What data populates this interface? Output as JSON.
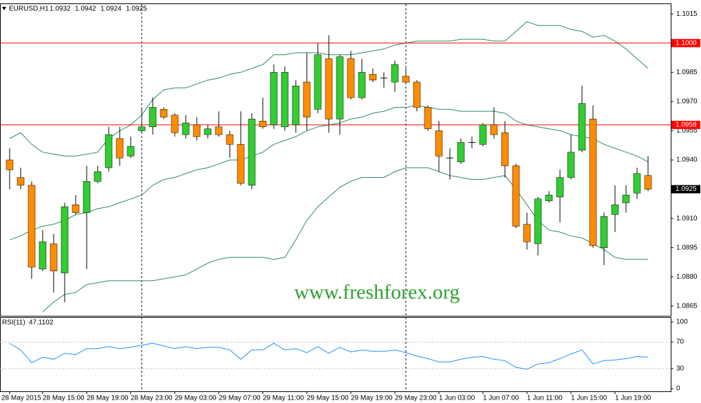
{
  "chart_data": [
    {
      "type": "candlestick",
      "title": "EURUSD,H1",
      "header_values": [
        1.0932,
        1.0942,
        1.0924,
        1.0925
      ],
      "watermark": "www.freshforex.org",
      "categories": [
        "28 May 2015",
        null,
        null,
        "28 May 15:00",
        null,
        null,
        null,
        "28 May 19:00",
        null,
        null,
        null,
        "28 May 23:00",
        null,
        null,
        null,
        "29 May 03:00",
        null,
        null,
        null,
        "29 May 07:00",
        null,
        null,
        null,
        "29 May 11:00",
        null,
        null,
        null,
        "29 May 15:00",
        null,
        null,
        null,
        "29 May 19:00",
        null,
        null,
        null,
        "29 May 23:00",
        null,
        null,
        null,
        "1 Jun 03:00",
        null,
        null,
        null,
        "1 Jun 07:00",
        null,
        null,
        null,
        "1 Jun 11:00",
        null,
        null,
        null,
        "1 Jun 15:00",
        null,
        null,
        null,
        "1 Jun 19:00",
        null,
        null,
        null
      ],
      "open": [
        1.094,
        1.0931,
        1.0927,
        1.0884,
        1.0897,
        1.0882,
        1.0917,
        1.0913,
        1.0929,
        1.0936,
        1.0951,
        1.0942,
        1.0955,
        1.0957,
        1.0966,
        1.0963,
        1.0953,
        1.0958,
        1.0953,
        1.0957,
        1.0953,
        1.0948,
        1.0927,
        1.096,
        1.0958,
        1.0957,
        1.0958,
        1.098,
        1.0966,
        1.0992,
        1.0961,
        1.0992,
        1.0972,
        1.0984,
        1.0982,
        1.098,
        1.0983,
        1.098,
        1.0967,
        1.0955,
        1.0941,
        1.0939,
        1.0949,
        1.0948,
        1.0958,
        1.0954,
        1.0937,
        1.0907,
        1.0897,
        1.0919,
        1.0921,
        1.0931,
        1.0945,
        1.0961,
        1.0895,
        1.0912,
        1.0918,
        1.0923,
        1.0932
      ],
      "high": [
        1.0946,
        1.0936,
        1.0929,
        1.0904,
        1.0902,
        1.0918,
        1.0922,
        1.0937,
        1.0937,
        1.0957,
        1.0957,
        1.0952,
        1.0967,
        1.0972,
        1.0967,
        1.0964,
        1.0963,
        1.0962,
        1.0958,
        1.0965,
        1.0955,
        1.0965,
        1.0964,
        1.0972,
        1.0989,
        1.0988,
        1.0981,
        1.0995,
        1.1,
        1.1004,
        1.0994,
        1.0996,
        1.0992,
        1.0987,
        1.0985,
        1.0991,
        1.0987,
        1.0981,
        1.0968,
        1.096,
        1.0946,
        1.0951,
        1.0952,
        1.0959,
        1.0967,
        1.096,
        1.0938,
        1.0913,
        1.0921,
        1.0924,
        1.0935,
        1.0953,
        1.0978,
        1.0968,
        1.0913,
        1.0927,
        1.0927,
        1.0936,
        1.0942
      ],
      "low": [
        1.0925,
        1.0925,
        1.0879,
        1.0883,
        1.0872,
        1.0867,
        1.0912,
        1.0884,
        1.0928,
        1.0934,
        1.0937,
        1.0941,
        1.0954,
        1.0953,
        1.0961,
        1.0952,
        1.0951,
        1.095,
        1.0951,
        1.0952,
        1.0941,
        1.0927,
        1.0925,
        1.0956,
        1.0956,
        1.0955,
        1.0954,
        1.0955,
        1.0964,
        1.0954,
        1.0953,
        1.0971,
        1.0971,
        1.098,
        1.0977,
        1.0975,
        1.0979,
        1.0965,
        1.0955,
        1.0934,
        1.093,
        1.0938,
        1.0946,
        1.0947,
        1.0951,
        1.0931,
        1.0905,
        1.0894,
        1.0891,
        1.0918,
        1.0908,
        1.093,
        1.0944,
        1.0895,
        1.0886,
        1.0903,
        1.0913,
        1.092,
        1.0924
      ],
      "close": [
        1.0935,
        1.0927,
        1.0885,
        1.0898,
        1.0883,
        1.0916,
        1.0913,
        1.0929,
        1.0934,
        1.0953,
        1.0941,
        1.0947,
        1.0957,
        1.0967,
        1.0962,
        1.0954,
        1.0959,
        1.0952,
        1.0956,
        1.0953,
        1.0948,
        1.0928,
        1.0961,
        1.0957,
        1.0985,
        1.0985,
        1.0978,
        1.0962,
        1.0994,
        1.0961,
        1.0993,
        1.0972,
        1.0985,
        1.0981,
        1.0982,
        1.0989,
        1.098,
        1.0967,
        1.0956,
        1.0942,
        1.0941,
        1.0949,
        1.0949,
        1.0958,
        1.0953,
        1.0937,
        1.0906,
        1.0898,
        1.092,
        1.0922,
        1.0931,
        1.0944,
        1.0969,
        1.0896,
        1.0911,
        1.0917,
        1.0922,
        1.0933,
        1.0925
      ],
      "up_color": "#32cd32",
      "down_color": "#ff8c00",
      "wick_color": "#000000",
      "overlays": [
        {
          "color": "#2e8b57",
          "values": [
            1.0951,
            1.0954,
            1.0948,
            1.0944,
            1.0943,
            1.0942,
            1.0942,
            1.0943,
            1.0944,
            1.0951,
            1.0955,
            1.0958,
            1.0963,
            1.0971,
            1.0976,
            1.0977,
            1.0977,
            1.0979,
            1.0981,
            1.0982,
            1.0984,
            1.0985,
            1.0987,
            1.0989,
            1.0994,
            1.0994,
            1.0995,
            1.0995,
            1.0995,
            1.0994,
            1.0994,
            1.0994,
            1.0995,
            1.0996,
            1.0997,
            1.0999,
            1.1,
            1.1001,
            1.1001,
            1.1001,
            1.1001,
            1.1002,
            1.1002,
            1.1002,
            1.1001,
            1.1001,
            1.1006,
            1.1011,
            1.1009,
            1.1009,
            1.1009,
            1.1007,
            1.1006,
            1.1003,
            1.1004,
            1.1001,
            1.0997,
            1.0992,
            1.0987
          ]
        },
        {
          "color": "#2e8b57",
          "values": [
            1.0899,
            1.0901,
            1.0904,
            1.0906,
            1.0907,
            1.0909,
            1.0912,
            1.0913,
            1.0915,
            1.0916,
            1.0918,
            1.092,
            1.0922,
            1.0927,
            1.093,
            1.0931,
            1.0933,
            1.0935,
            1.0936,
            1.0938,
            1.094,
            1.094,
            1.0942,
            1.0944,
            1.0948,
            1.095,
            1.0952,
            1.0955,
            1.0957,
            1.0958,
            1.0959,
            1.0961,
            1.0962,
            1.0964,
            1.0965,
            1.0967,
            1.0967,
            1.0968,
            1.0967,
            1.0966,
            1.0966,
            1.0965,
            1.0965,
            1.0965,
            1.0965,
            1.0964,
            1.096,
            1.0958,
            1.0957,
            1.0956,
            1.0955,
            1.0953,
            1.0952,
            1.0951,
            1.0948,
            1.0946,
            1.0944,
            1.0942,
            1.0939
          ]
        },
        {
          "color": "#2e8b57",
          "values": [
            null,
            null,
            null,
            1.0862,
            1.0867,
            1.0871,
            1.0872,
            1.0876,
            1.0877,
            1.0878,
            1.0878,
            1.0878,
            1.0878,
            1.0878,
            1.0879,
            1.088,
            1.0881,
            1.0884,
            1.0887,
            1.0889,
            1.089,
            1.089,
            1.089,
            1.089,
            1.0889,
            1.089,
            1.0899,
            1.0909,
            1.0916,
            1.0921,
            1.0926,
            1.0929,
            1.0931,
            1.0931,
            1.0931,
            1.0934,
            1.0936,
            1.0936,
            1.0936,
            1.0934,
            1.0932,
            1.0931,
            1.093,
            1.093,
            1.0931,
            1.0932,
            1.0925,
            1.0917,
            1.0909,
            1.0904,
            1.0903,
            1.0901,
            1.09,
            1.0897,
            1.0894,
            1.089,
            1.0889,
            1.0889,
            1.0889
          ]
        }
      ],
      "hlines": [
        {
          "value": 1.1,
          "label": "1.1000",
          "color": "#ff0000"
        },
        {
          "value": 1.0958,
          "label": "1.0958",
          "color": "#ff0000"
        }
      ],
      "current_price": {
        "value": 1.0925,
        "label": "1.0925"
      },
      "ylim": [
        1.086,
        1.102
      ],
      "yticks": [
        1.1015,
        {
          "value": 1.1,
          "label": "1.1000"
        },
        1.0985,
        {
          "value": 1.097,
          "label": "1.0970"
        },
        1.0955,
        {
          "value": 1.094,
          "label": "1.0940"
        },
        1.0925,
        {
          "value": 1.091,
          "label": "1.0910"
        },
        1.0895,
        {
          "value": 1.088,
          "label": "1.0880"
        },
        1.0865
      ]
    },
    {
      "type": "line",
      "title": "RSI(11)",
      "current_value": 47.1102,
      "color": "#1e90ff",
      "values": [
        68,
        58,
        39,
        47,
        44,
        53,
        51,
        60,
        60,
        63,
        60,
        62,
        65,
        68,
        64,
        60,
        63,
        60,
        62,
        62,
        58,
        44,
        58,
        58,
        68,
        58,
        60,
        54,
        63,
        53,
        62,
        55,
        58,
        56,
        56,
        58,
        54,
        49,
        45,
        40,
        40,
        44,
        47,
        48,
        44,
        42,
        32,
        29,
        37,
        39,
        45,
        52,
        58,
        37,
        42,
        43,
        45,
        48,
        47.1102
      ],
      "ylim": [
        0,
        100
      ],
      "yticks": [
        0,
        30,
        70,
        100
      ]
    }
  ]
}
